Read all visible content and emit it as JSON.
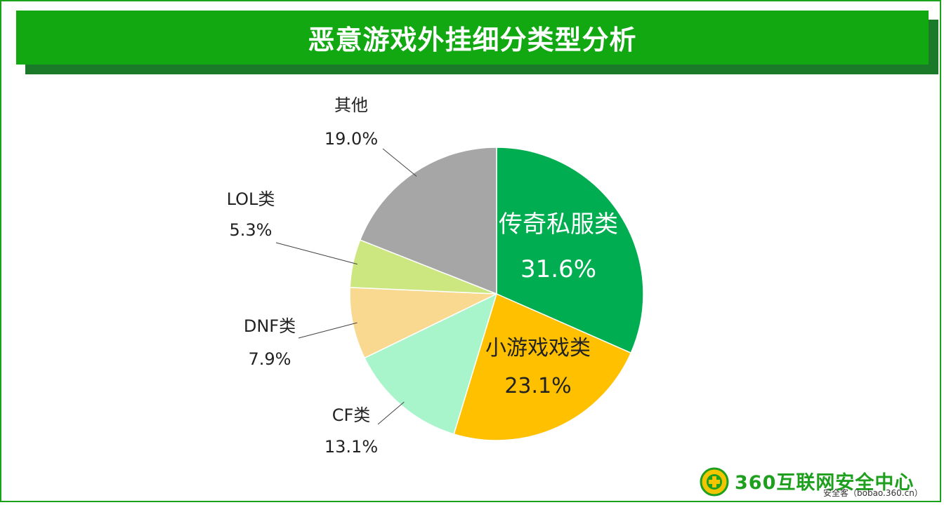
{
  "title": "恶意游戏外挂细分类型分析",
  "colors": {
    "title_bg": "#12a812",
    "title_shadow": "#1b7a2a",
    "border": "#1aa31a"
  },
  "chart_data": {
    "type": "pie",
    "title": "恶意游戏外挂细分类型分析",
    "start": "12 o'clock, clockwise",
    "slices": [
      {
        "label": "传奇私服类",
        "value": 31.6,
        "pct": "31.6%",
        "color": "#00ae51",
        "label_inside": true,
        "text_color": "#ffffff"
      },
      {
        "label": "小游戏戏类",
        "value": 23.1,
        "pct": "23.1%",
        "color": "#ffc000",
        "label_inside": true,
        "text_color": "#222222"
      },
      {
        "label": "CF类",
        "value": 13.1,
        "pct": "13.1%",
        "color": "#a8f5cb",
        "label_inside": false,
        "text_color": "#222222"
      },
      {
        "label": "DNF类",
        "value": 7.9,
        "pct": "7.9%",
        "color": "#f9d890",
        "label_inside": false,
        "text_color": "#222222"
      },
      {
        "label": "LOL类",
        "value": 5.3,
        "pct": "5.3%",
        "color": "#cce680",
        "label_inside": false,
        "text_color": "#222222"
      },
      {
        "label": "其他",
        "value": 19.0,
        "pct": "19.0%",
        "color": "#a6a6a6",
        "label_inside": false,
        "text_color": "#222222"
      }
    ]
  },
  "logo": {
    "name": "360互联网安全中心",
    "subtitle": "安全客（bobao.360.cn）",
    "color": "#1ea01e"
  }
}
